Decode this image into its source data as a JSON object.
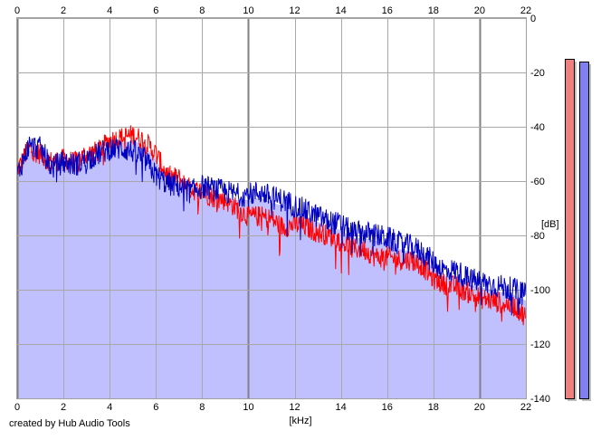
{
  "credit": "created by Hub Audio Tools",
  "chart_data": {
    "type": "area",
    "title": "",
    "xlabel": "[kHz]",
    "ylabel": "[dB]",
    "xlim": [
      0,
      22
    ],
    "ylim": [
      -140,
      0
    ],
    "x_ticks": [
      0,
      2,
      4,
      6,
      8,
      10,
      12,
      14,
      16,
      18,
      20,
      22
    ],
    "y_ticks": [
      0,
      -20,
      -40,
      -60,
      -80,
      -100,
      -120,
      -140
    ],
    "x_tick_labels": [
      "0",
      "2",
      "4",
      "6",
      "8",
      "10",
      "12",
      "14",
      "16",
      "18",
      "20",
      "22"
    ],
    "y_tick_labels": [
      "0",
      "-20",
      "-40",
      "-60",
      "-80",
      "-100",
      "-120",
      "-140"
    ],
    "grid": true,
    "fill_color": "#c0c0ff",
    "series": [
      {
        "color": "#ff0000",
        "x": [
          0,
          0.5,
          1,
          1.5,
          2,
          2.5,
          3,
          3.5,
          4,
          4.5,
          5,
          5.5,
          6,
          6.5,
          7,
          7.5,
          8,
          8.5,
          9,
          9.5,
          10,
          10.5,
          11,
          11.5,
          12,
          12.5,
          13,
          13.5,
          14,
          14.5,
          15,
          15.5,
          16,
          16.5,
          17,
          17.5,
          18,
          18.5,
          19,
          19.5,
          20,
          20.5,
          21,
          21.5,
          22
        ],
        "values": [
          -56,
          -48,
          -50,
          -53,
          -52,
          -53,
          -50,
          -49,
          -45,
          -44,
          -43,
          -45,
          -50,
          -58,
          -59,
          -63,
          -64,
          -66,
          -67,
          -70,
          -73,
          -73,
          -74,
          -77,
          -76,
          -77,
          -79,
          -80,
          -82,
          -85,
          -85,
          -88,
          -88,
          -89,
          -89,
          -91,
          -96,
          -98,
          -99,
          -101,
          -103,
          -104,
          -105,
          -106,
          -110
        ]
      },
      {
        "color": "#0000c0",
        "x": [
          0,
          0.5,
          1,
          1.5,
          2,
          2.5,
          3,
          3.5,
          4,
          4.5,
          5,
          5.5,
          6,
          6.5,
          7,
          7.5,
          8,
          8.5,
          9,
          9.5,
          10,
          10.5,
          11,
          11.5,
          12,
          12.5,
          13,
          13.5,
          14,
          14.5,
          15,
          15.5,
          16,
          16.5,
          17,
          17.5,
          18,
          18.5,
          19,
          19.5,
          20,
          20.5,
          21,
          21.5,
          22
        ],
        "values": [
          -58,
          -47,
          -48,
          -55,
          -53,
          -54,
          -52,
          -50,
          -48,
          -48,
          -49,
          -52,
          -58,
          -61,
          -62,
          -64,
          -62,
          -63,
          -64,
          -65,
          -65,
          -64,
          -66,
          -67,
          -69,
          -71,
          -73,
          -75,
          -76,
          -79,
          -79,
          -80,
          -81,
          -83,
          -84,
          -86,
          -90,
          -93,
          -93,
          -96,
          -97,
          -98,
          -99,
          -100,
          -102
        ]
      }
    ],
    "level_meters": [
      {
        "color": "#f08080",
        "value": -15
      },
      {
        "color": "#8080f0",
        "value": -16
      }
    ]
  }
}
